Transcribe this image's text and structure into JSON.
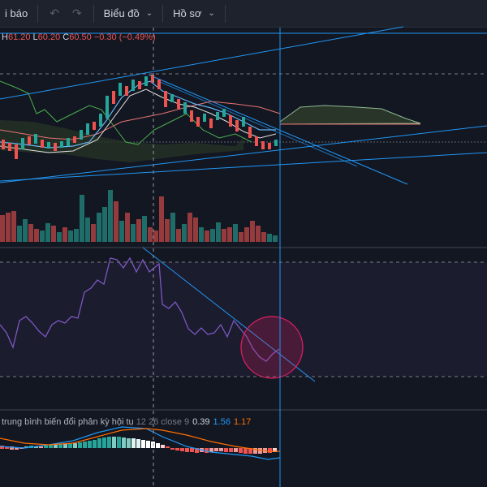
{
  "toolbar": {
    "alert_label": "i báo",
    "undo_icon": "undo-icon",
    "redo_icon": "redo-icon",
    "chart_menu_label": "Biểu đồ",
    "profile_menu_label": "Hồ sơ"
  },
  "ohlc": {
    "h_key": "H",
    "h_val": "61.20",
    "l_key": "L",
    "l_val": "60.20",
    "c_key": "C",
    "c_val": "60.50",
    "change": "−0.30 (−0.49%)"
  },
  "macd": {
    "label": "trung bình biến đổi phân kỳ hội tụ",
    "params": "12 26 close 9",
    "val1": "0.39",
    "val2": "1.56",
    "val3": "1.17"
  },
  "colors": {
    "background": "#131722",
    "toolbar": "#1e222d",
    "up": "#26a69a",
    "down": "#ef5350",
    "trendline": "#2196f3",
    "rsi_line": "#7e57c2",
    "macd_line": "#2196f3",
    "signal_line": "#ff6d00",
    "highlight_circle": "#e91e63"
  }
}
